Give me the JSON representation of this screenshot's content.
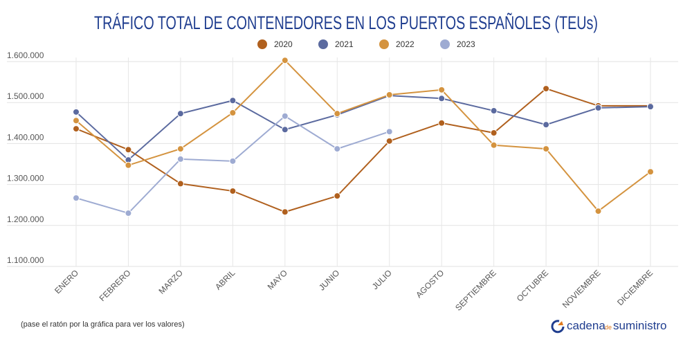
{
  "chart_data": {
    "type": "line",
    "title": "TRÁFICO TOTAL DE CONTENEDORES EN LOS PUERTOS ESPAÑOLES (TEUs)",
    "categories": [
      "ENERO",
      "FEBRERO",
      "MARZO",
      "ABRIL",
      "MAYO",
      "JUNIO",
      "JULIO",
      "AGOSTO",
      "SEPTIEMBRE",
      "OCTUBRE",
      "NOVIEMBRE",
      "DICIEMBRE"
    ],
    "series": [
      {
        "name": "2020",
        "color": "#b0601e",
        "values": [
          1436000,
          1385000,
          1302000,
          1284000,
          1233000,
          1272000,
          1406000,
          1450000,
          1426000,
          1534000,
          1492000,
          1492000
        ]
      },
      {
        "name": "2021",
        "color": "#5b6a9f",
        "values": [
          1477000,
          1360000,
          1473000,
          1505000,
          1434000,
          1470000,
          1517000,
          1510000,
          1480000,
          1446000,
          1487000,
          1490000
        ]
      },
      {
        "name": "2022",
        "color": "#d4933f",
        "values": [
          1456000,
          1347000,
          1387000,
          1475000,
          1603000,
          1473000,
          1519000,
          1531000,
          1396000,
          1387000,
          1235000,
          1331000
        ]
      },
      {
        "name": "2023",
        "color": "#9eabd2",
        "values": [
          1267000,
          1230000,
          1362000,
          1357000,
          1467000,
          1387000,
          1429000,
          null,
          null,
          null,
          null,
          null
        ]
      }
    ],
    "ylim": [
      1100000,
      1610000
    ],
    "yticks": [
      {
        "value": 1100000,
        "label": "1.100.000"
      },
      {
        "value": 1200000,
        "label": "1.200.000"
      },
      {
        "value": 1300000,
        "label": "1.300.000"
      },
      {
        "value": 1400000,
        "label": "1.400.000"
      },
      {
        "value": 1500000,
        "label": "1.500.000"
      },
      {
        "value": 1600000,
        "label": "1.600.000"
      }
    ],
    "grid": true,
    "legend": "top"
  },
  "footer": {
    "note": "(pase el ratón por la gráfica para ver los valores)",
    "brand": [
      "cadena",
      "de",
      "suministro"
    ]
  }
}
